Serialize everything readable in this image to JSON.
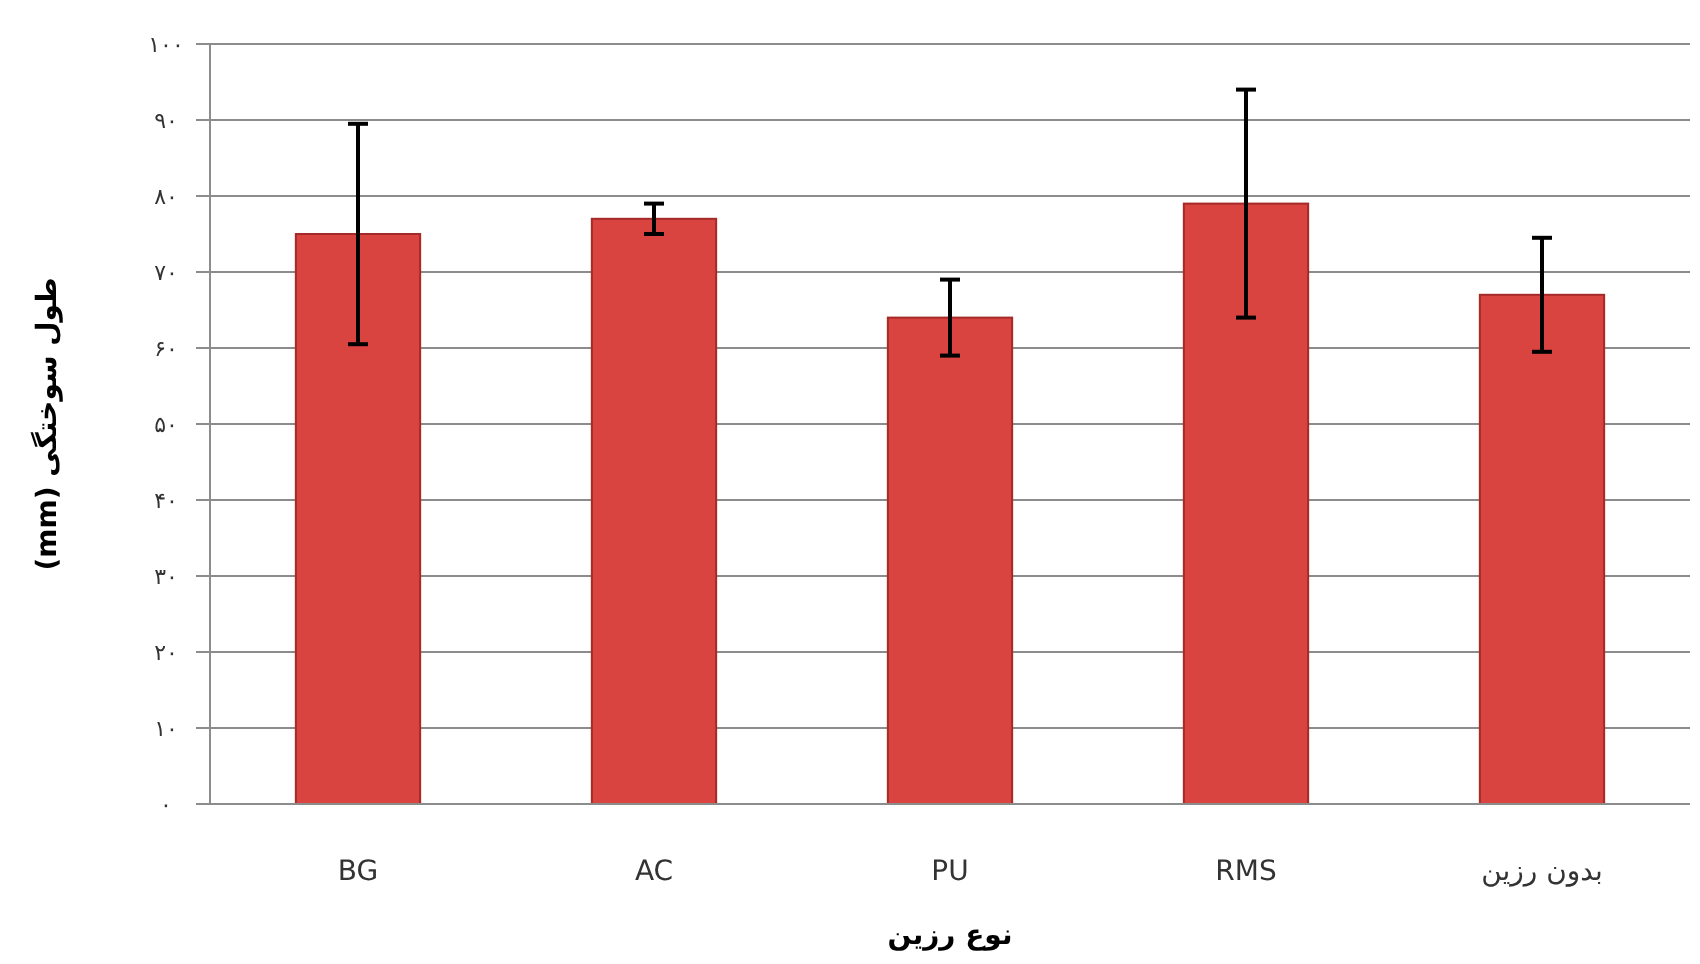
{
  "chart_data": {
    "type": "bar",
    "xlabel": "نوع رزین",
    "ylabel": "طول سوختگی (mm)",
    "categories": [
      "BG",
      "AC",
      "PU",
      "RMS",
      "بدون رزین"
    ],
    "values": [
      75,
      77,
      64,
      79,
      67
    ],
    "errors": [
      14.5,
      2,
      5,
      15,
      7.5
    ],
    "color": "#d94340",
    "ylim": [
      0,
      100
    ],
    "yticks": [
      {
        "value": 0,
        "label": "۰"
      },
      {
        "value": 10,
        "label": "۱۰"
      },
      {
        "value": 20,
        "label": "۲۰"
      },
      {
        "value": 30,
        "label": "۳۰"
      },
      {
        "value": 40,
        "label": "۴۰"
      },
      {
        "value": 50,
        "label": "۵۰"
      },
      {
        "value": 60,
        "label": "۶۰"
      },
      {
        "value": 70,
        "label": "۷۰"
      },
      {
        "value": 80,
        "label": "۸۰"
      },
      {
        "value": 90,
        "label": "۹۰"
      },
      {
        "value": 100,
        "label": "۱۰۰"
      }
    ],
    "grid": "y"
  }
}
